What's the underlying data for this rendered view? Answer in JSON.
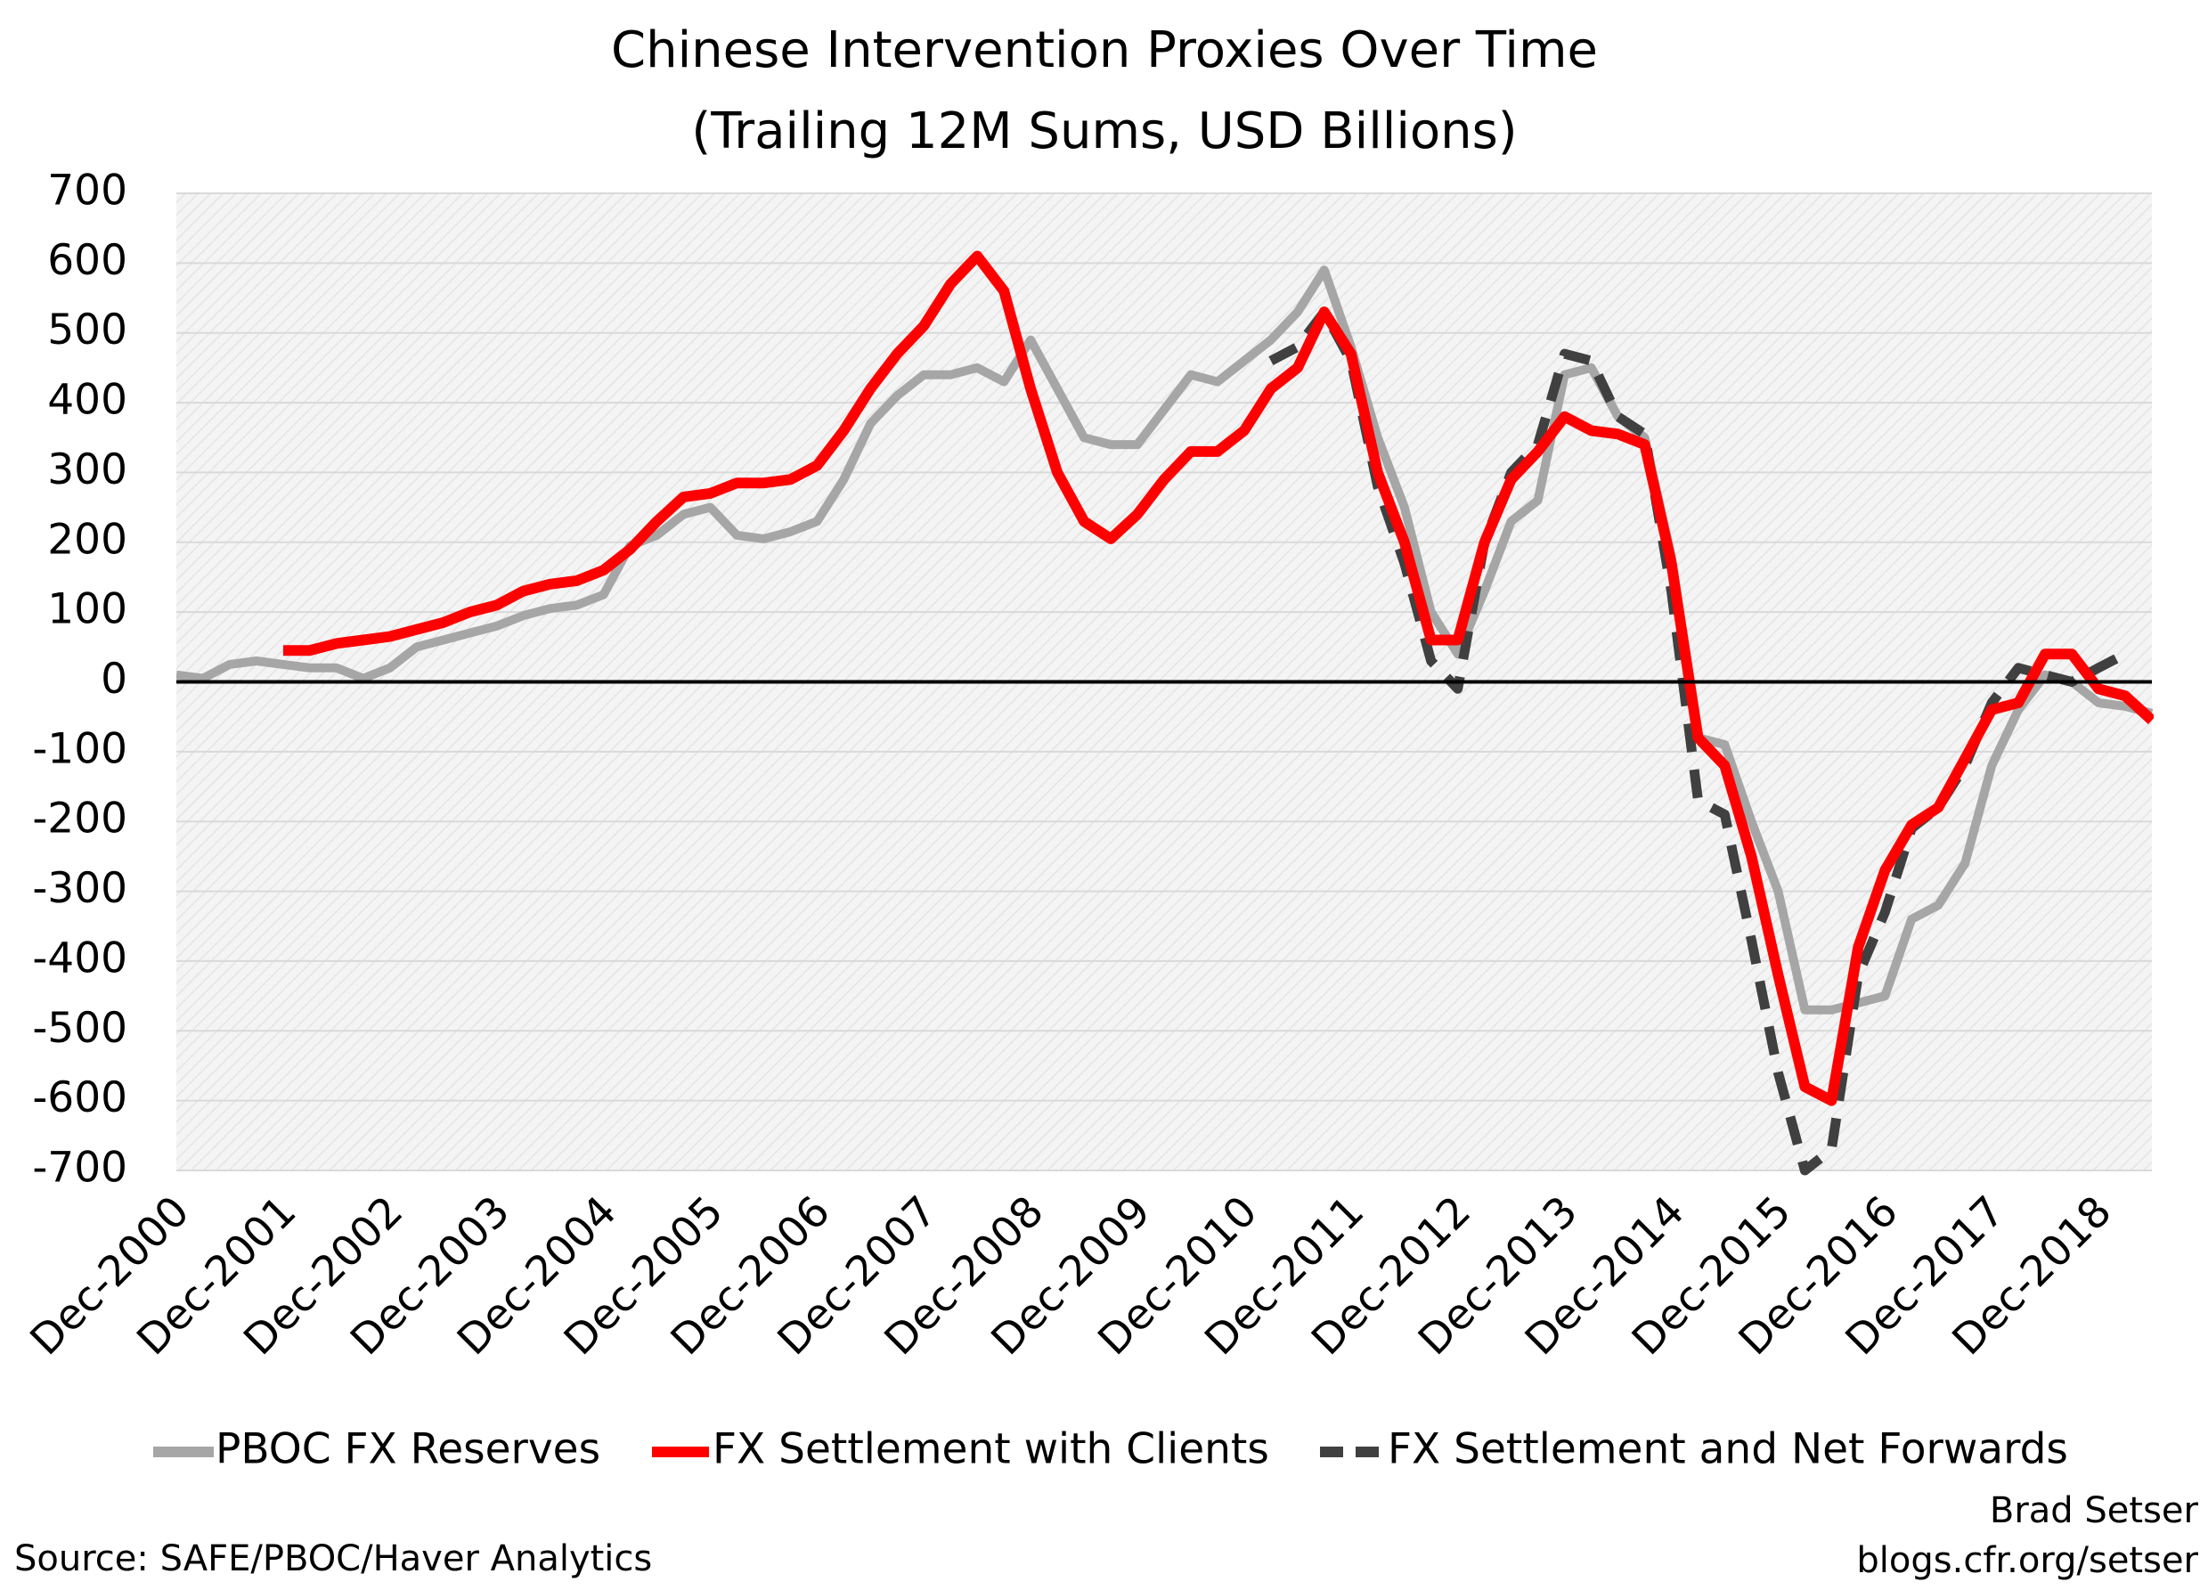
{
  "chart_data": {
    "type": "line",
    "title": "Chinese Intervention Proxies Over Time",
    "subtitle": "(Trailing 12M Sums, USD Billions)",
    "categories": [
      "Dec-2000",
      null,
      null,
      null,
      "Dec-2001",
      null,
      null,
      null,
      "Dec-2002",
      null,
      null,
      null,
      "Dec-2003",
      null,
      null,
      null,
      "Dec-2004",
      null,
      null,
      null,
      "Dec-2005",
      null,
      null,
      null,
      "Dec-2006",
      null,
      null,
      null,
      "Dec-2007",
      null,
      null,
      null,
      "Dec-2008",
      null,
      null,
      null,
      "Dec-2009",
      null,
      null,
      null,
      "Dec-2010",
      null,
      null,
      null,
      "Dec-2011",
      null,
      null,
      null,
      "Dec-2012",
      null,
      null,
      null,
      "Dec-2013",
      null,
      null,
      null,
      "Dec-2014",
      null,
      null,
      null,
      "Dec-2015",
      null,
      null,
      null,
      "Dec-2016",
      null,
      null,
      null,
      "Dec-2017",
      null,
      null,
      null,
      "Dec-2018",
      null,
      null
    ],
    "series": [
      {
        "name": "PBOC FX Reserves",
        "color": "#a6a6a6",
        "style": "solid",
        "values": [
          10,
          5,
          25,
          30,
          25,
          20,
          20,
          5,
          20,
          50,
          60,
          70,
          80,
          95,
          105,
          110,
          125,
          195,
          210,
          240,
          250,
          210,
          205,
          215,
          230,
          290,
          370,
          410,
          440,
          440,
          450,
          430,
          490,
          420,
          350,
          340,
          340,
          390,
          440,
          430,
          460,
          490,
          530,
          590,
          480,
          350,
          250,
          100,
          40,
          130,
          230,
          260,
          440,
          450,
          380,
          350,
          180,
          -80,
          -90,
          -200,
          -300,
          -470,
          -470,
          -460,
          -450,
          -340,
          -320,
          -260,
          -120,
          -40,
          10,
          0,
          -30,
          -35,
          -45
        ]
      },
      {
        "name": "FX Settlement with Clients",
        "color": "#ff0000",
        "style": "solid",
        "values": [
          null,
          null,
          null,
          null,
          45,
          45,
          55,
          60,
          65,
          75,
          85,
          100,
          110,
          130,
          140,
          145,
          160,
          190,
          230,
          265,
          270,
          285,
          285,
          290,
          310,
          360,
          420,
          470,
          510,
          570,
          610,
          560,
          420,
          300,
          230,
          205,
          240,
          290,
          330,
          330,
          360,
          420,
          450,
          530,
          470,
          300,
          200,
          60,
          60,
          200,
          290,
          330,
          380,
          360,
          355,
          340,
          170,
          -80,
          -120,
          -250,
          -420,
          -580,
          -600,
          -380,
          -270,
          -205,
          -180,
          -110,
          -40,
          -30,
          40,
          40,
          -10,
          -20,
          -55
        ]
      },
      {
        "name": "FX Settlement and Net Forwards",
        "color": "#404040",
        "style": "dashed",
        "values": [
          null,
          null,
          null,
          null,
          null,
          null,
          null,
          null,
          null,
          null,
          null,
          null,
          null,
          null,
          null,
          null,
          null,
          null,
          null,
          null,
          null,
          null,
          null,
          null,
          null,
          null,
          null,
          null,
          null,
          null,
          null,
          null,
          null,
          null,
          null,
          null,
          null,
          null,
          null,
          null,
          null,
          460,
          480,
          530,
          460,
          280,
          170,
          30,
          -10,
          200,
          300,
          340,
          470,
          460,
          380,
          355,
          130,
          -170,
          -190,
          -370,
          -560,
          -700,
          -670,
          -420,
          -330,
          -210,
          -180,
          -120,
          -30,
          20,
          10,
          0,
          20,
          40,
          null
        ]
      }
    ],
    "ylim": [
      -700,
      700
    ],
    "yticks": [
      -700,
      -600,
      -500,
      -400,
      -300,
      -200,
      -100,
      0,
      100,
      200,
      300,
      400,
      500,
      600,
      700
    ],
    "grid": true,
    "legend": "bottom",
    "source": "Source: SAFE/PBOC/Haver Analytics",
    "credit": [
      "Brad Setser",
      "blogs.cfr.org/setser"
    ]
  }
}
